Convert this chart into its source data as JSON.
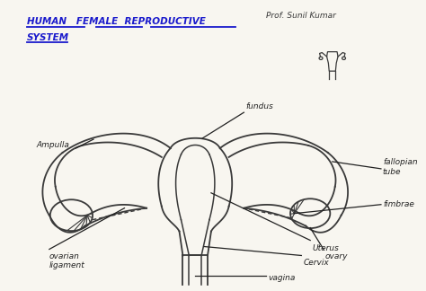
{
  "title_line1": "HUMAN   FEMALE  REPRODUCTIVE",
  "title_line2": "SYSTEM",
  "author": "Prof. Sunil Kumar",
  "bg_color": "#f8f6f0",
  "draw_color": "#3a3a3a",
  "title_color": "#1a1acc",
  "label_color": "#222222"
}
